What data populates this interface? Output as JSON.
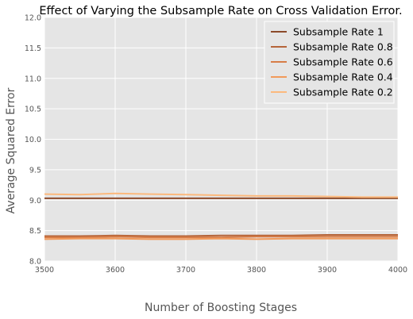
{
  "chart_data": {
    "type": "line",
    "title": "Effect of Varying the Subsample Rate on Cross Validation Error.",
    "xlabel": "Number of Boosting Stages",
    "ylabel": "Average Squared Error",
    "xlim": [
      3500,
      4000
    ],
    "ylim": [
      8.0,
      12.0
    ],
    "xticks": [
      "3500",
      "3600",
      "3700",
      "3800",
      "3900",
      "4000"
    ],
    "yticks": [
      "8.0",
      "8.5",
      "9.0",
      "9.5",
      "10.0",
      "10.5",
      "11.0",
      "11.5",
      "12.0"
    ],
    "grid": true,
    "legend_position": "top-right",
    "x": [
      3500,
      3550,
      3600,
      3650,
      3700,
      3750,
      3800,
      3850,
      3900,
      3950,
      4000
    ],
    "series": [
      {
        "name": "Subsample Rate 1",
        "color": "#8c4a2a",
        "values": [
          9.03,
          9.03,
          9.03,
          9.03,
          9.03,
          9.03,
          9.03,
          9.03,
          9.03,
          9.03,
          9.03
        ]
      },
      {
        "name": "Subsample Rate 0.8",
        "color": "#b5653a",
        "values": [
          8.41,
          8.41,
          8.42,
          8.41,
          8.41,
          8.42,
          8.42,
          8.42,
          8.43,
          8.43,
          8.43
        ]
      },
      {
        "name": "Subsample Rate 0.6",
        "color": "#d77d47",
        "values": [
          8.39,
          8.39,
          8.4,
          8.39,
          8.39,
          8.39,
          8.4,
          8.4,
          8.4,
          8.4,
          8.4
        ]
      },
      {
        "name": "Subsample Rate 0.4",
        "color": "#f29a5a",
        "values": [
          8.36,
          8.37,
          8.37,
          8.36,
          8.36,
          8.37,
          8.36,
          8.37,
          8.37,
          8.37,
          8.37
        ]
      },
      {
        "name": "Subsample Rate 0.2",
        "color": "#fcb97d",
        "values": [
          9.1,
          9.09,
          9.11,
          9.1,
          9.09,
          9.08,
          9.07,
          9.07,
          9.06,
          9.05,
          9.05
        ]
      }
    ]
  }
}
